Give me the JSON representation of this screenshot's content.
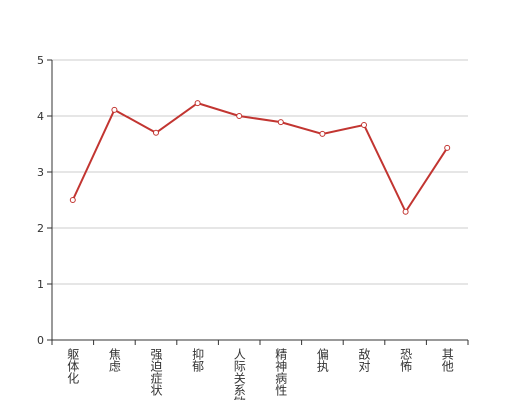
{
  "chart_data": {
    "type": "line",
    "categories": [
      "躯体化",
      "焦虑",
      "强迫症状",
      "抑郁",
      "人际关系敏感",
      "精神病性",
      "偏执",
      "敌对",
      "恐怖",
      "其他"
    ],
    "values": [
      2.5,
      4.11,
      3.7,
      4.23,
      4.0,
      3.89,
      3.68,
      3.84,
      2.29,
      3.43
    ],
    "color": "#c23531",
    "ylim": [
      0,
      5
    ],
    "yticks": [
      0,
      1,
      2,
      3,
      4,
      5
    ],
    "grid": true
  }
}
